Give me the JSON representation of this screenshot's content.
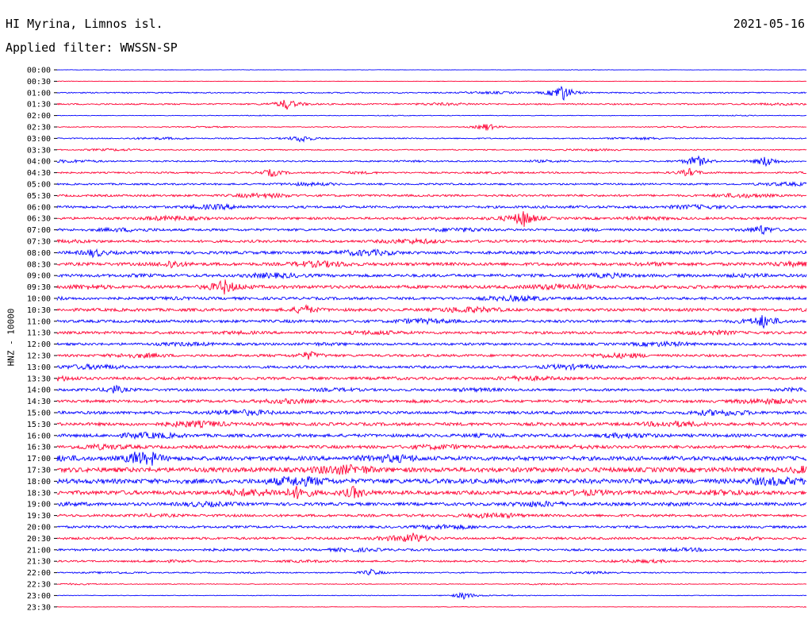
{
  "header": {
    "title": "HI Myrina, Limnos isl.",
    "date": "2021-05-16",
    "filter": "Applied filter: WWSSN-SP"
  },
  "chart_data": {
    "type": "line",
    "title": "HI Myrina, Limnos isl.",
    "date": "2021-05-16",
    "subtitle": "Applied filter: WWSSN-SP",
    "ylabel": "HNZ - 10000",
    "xlabel": "",
    "legend": "none",
    "grid": false,
    "colors": {
      "even_rows": "#0000ff",
      "odd_rows": "#ff0033",
      "axis": "#000000"
    },
    "x_minutes_per_row": 30,
    "rows": [
      "00:00",
      "00:30",
      "01:00",
      "01:30",
      "02:00",
      "02:30",
      "03:00",
      "03:30",
      "04:00",
      "04:30",
      "05:00",
      "05:30",
      "06:00",
      "06:30",
      "07:00",
      "07:30",
      "08:00",
      "08:30",
      "09:00",
      "09:30",
      "10:00",
      "10:30",
      "11:00",
      "11:30",
      "12:00",
      "12:30",
      "13:00",
      "13:30",
      "14:00",
      "14:30",
      "15:00",
      "15:30",
      "16:00",
      "16:30",
      "17:00",
      "17:30",
      "18:00",
      "18:30",
      "19:00",
      "19:30",
      "20:00",
      "20:30",
      "21:00",
      "21:30",
      "22:00",
      "22:30",
      "23:00",
      "23:30"
    ],
    "noise_level": [
      0.3,
      0.3,
      1.2,
      1.5,
      0.6,
      0.8,
      1.2,
      1.1,
      1.5,
      1.6,
      1.8,
      2.2,
      2.5,
      2.5,
      2.5,
      2.6,
      3.0,
      3.2,
      3.0,
      3.3,
      2.8,
      3.0,
      2.8,
      2.7,
      2.5,
      2.5,
      2.6,
      2.8,
      2.6,
      2.8,
      3.0,
      3.2,
      3.2,
      3.2,
      4.2,
      4.8,
      4.8,
      4.0,
      3.2,
      2.6,
      2.4,
      2.4,
      2.2,
      1.8,
      1.2,
      0.8,
      0.6,
      0.4
    ],
    "events": [
      {
        "row": "01:00",
        "minute": 20.2,
        "amp": 12
      },
      {
        "row": "01:30",
        "minute": 9.2,
        "amp": 7
      },
      {
        "row": "02:30",
        "minute": 17.2,
        "amp": 5
      },
      {
        "row": "03:00",
        "minute": 9.8,
        "amp": 5
      },
      {
        "row": "04:00",
        "minute": 25.6,
        "amp": 8
      },
      {
        "row": "04:00",
        "minute": 28.4,
        "amp": 7
      },
      {
        "row": "04:30",
        "minute": 8.6,
        "amp": 5
      },
      {
        "row": "04:30",
        "minute": 25.3,
        "amp": 5
      },
      {
        "row": "06:30",
        "minute": 18.7,
        "amp": 10
      },
      {
        "row": "07:00",
        "minute": 28.2,
        "amp": 6
      },
      {
        "row": "08:00",
        "minute": 1.5,
        "amp": 5
      },
      {
        "row": "08:30",
        "minute": 4.6,
        "amp": 5
      },
      {
        "row": "09:30",
        "minute": 6.7,
        "amp": 7
      },
      {
        "row": "10:30",
        "minute": 9.9,
        "amp": 6
      },
      {
        "row": "11:00",
        "minute": 28.3,
        "amp": 7
      },
      {
        "row": "12:30",
        "minute": 10.1,
        "amp": 5
      },
      {
        "row": "14:00",
        "minute": 2.3,
        "amp": 5
      },
      {
        "row": "17:00",
        "minute": 3.2,
        "amp": 8
      },
      {
        "row": "17:00",
        "minute": 3.8,
        "amp": 6
      },
      {
        "row": "18:30",
        "minute": 9.7,
        "amp": 9
      },
      {
        "row": "18:30",
        "minute": 11.9,
        "amp": 7
      },
      {
        "row": "20:30",
        "minute": 14.3,
        "amp": 5
      },
      {
        "row": "22:00",
        "minute": 12.6,
        "amp": 4
      },
      {
        "row": "23:00",
        "minute": 16.3,
        "amp": 5
      }
    ]
  }
}
